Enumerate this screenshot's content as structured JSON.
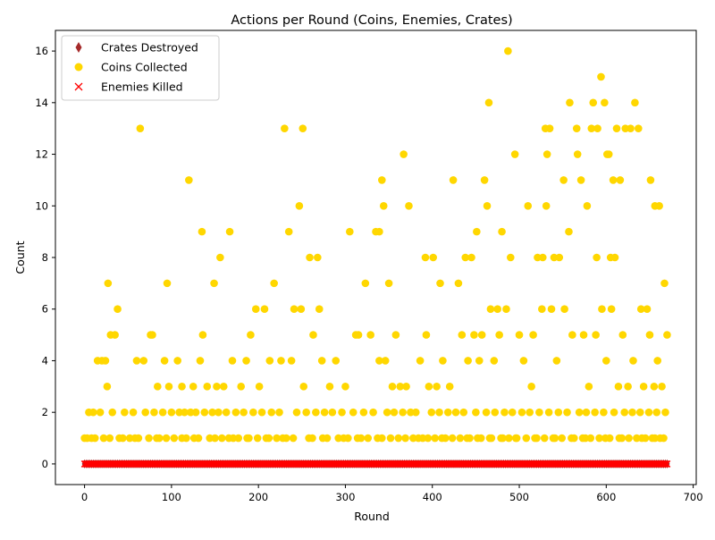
{
  "chart_data": {
    "type": "scatter",
    "title": "Actions per Round (Coins, Enemies, Crates)",
    "xlabel": "Round",
    "ylabel": "Count",
    "xlim": [
      -33.5,
      703.5
    ],
    "ylim": [
      -0.8,
      16.8
    ],
    "xticks": [
      0,
      100,
      200,
      300,
      400,
      500,
      600,
      700
    ],
    "yticks": [
      0,
      2,
      4,
      6,
      8,
      10,
      12,
      14,
      16
    ],
    "grid": false,
    "legend_position": "upper left",
    "series": [
      {
        "name": "Crates Destroyed",
        "marker": "thin-diamond",
        "color": "#a52a2a",
        "x_range": [
          0,
          670
        ],
        "values": "all 0"
      },
      {
        "name": "Coins Collected",
        "marker": "circle",
        "color": "#ffd700",
        "points": [
          [
            27,
            7
          ],
          [
            38,
            6
          ],
          [
            64,
            13
          ],
          [
            76,
            5
          ],
          [
            95,
            7
          ],
          [
            120,
            11
          ],
          [
            135,
            9
          ],
          [
            136,
            5
          ],
          [
            149,
            7
          ],
          [
            156,
            8
          ],
          [
            167,
            9
          ],
          [
            191,
            5
          ],
          [
            197,
            6
          ],
          [
            207,
            6
          ],
          [
            218,
            7
          ],
          [
            230,
            13
          ],
          [
            235,
            9
          ],
          [
            241,
            6
          ],
          [
            247,
            10
          ],
          [
            249,
            6
          ],
          [
            251,
            13
          ],
          [
            259,
            8
          ],
          [
            268,
            8
          ],
          [
            270,
            6
          ],
          [
            305,
            9
          ],
          [
            312,
            5
          ],
          [
            323,
            7
          ],
          [
            335,
            9
          ],
          [
            339,
            9
          ],
          [
            342,
            11
          ],
          [
            344,
            10
          ],
          [
            350,
            7
          ],
          [
            358,
            5
          ],
          [
            367,
            12
          ],
          [
            373,
            10
          ],
          [
            392,
            8
          ],
          [
            393,
            5
          ],
          [
            401,
            8
          ],
          [
            409,
            7
          ],
          [
            424,
            11
          ],
          [
            430,
            7
          ],
          [
            438,
            8
          ],
          [
            445,
            8
          ],
          [
            451,
            9
          ],
          [
            457,
            5
          ],
          [
            460,
            11
          ],
          [
            463,
            10
          ],
          [
            465,
            14
          ],
          [
            467,
            6
          ],
          [
            475,
            6
          ],
          [
            480,
            9
          ],
          [
            485,
            6
          ],
          [
            487,
            16
          ],
          [
            490,
            8
          ],
          [
            495,
            12
          ],
          [
            510,
            10
          ],
          [
            516,
            5
          ],
          [
            521,
            8
          ],
          [
            527,
            8
          ],
          [
            530,
            13
          ],
          [
            531,
            10
          ],
          [
            532,
            12
          ],
          [
            535,
            13
          ],
          [
            540,
            8
          ],
          [
            546,
            8
          ],
          [
            551,
            11
          ],
          [
            557,
            9
          ],
          [
            558,
            14
          ],
          [
            566,
            13
          ],
          [
            567,
            12
          ],
          [
            571,
            11
          ],
          [
            578,
            10
          ],
          [
            583,
            13
          ],
          [
            585,
            14
          ],
          [
            589,
            8
          ],
          [
            590,
            13
          ],
          [
            594,
            15
          ],
          [
            598,
            14
          ],
          [
            601,
            12
          ],
          [
            603,
            12
          ],
          [
            605,
            8
          ],
          [
            608,
            11
          ],
          [
            610,
            8
          ],
          [
            612,
            13
          ],
          [
            616,
            11
          ],
          [
            622,
            13
          ],
          [
            628,
            13
          ],
          [
            633,
            14
          ],
          [
            637,
            13
          ],
          [
            640,
            6
          ],
          [
            647,
            6
          ],
          [
            651,
            11
          ],
          [
            656,
            10
          ],
          [
            661,
            10
          ],
          [
            667,
            7
          ],
          [
            10,
            2
          ],
          [
            15,
            4
          ],
          [
            20,
            4
          ],
          [
            24,
            4
          ],
          [
            30,
            5
          ],
          [
            35,
            5
          ],
          [
            60,
            4
          ],
          [
            68,
            4
          ],
          [
            78,
            5
          ],
          [
            84,
            3
          ],
          [
            92,
            4
          ],
          [
            97,
            3
          ],
          [
            107,
            4
          ],
          [
            112,
            3
          ],
          [
            125,
            3
          ],
          [
            133,
            4
          ],
          [
            141,
            3
          ],
          [
            152,
            3
          ],
          [
            160,
            3
          ],
          [
            170,
            4
          ],
          [
            180,
            3
          ],
          [
            186,
            4
          ],
          [
            201,
            3
          ],
          [
            213,
            4
          ],
          [
            226,
            4
          ],
          [
            238,
            4
          ],
          [
            252,
            3
          ],
          [
            263,
            5
          ],
          [
            273,
            4
          ],
          [
            282,
            3
          ],
          [
            289,
            4
          ],
          [
            300,
            3
          ],
          [
            315,
            5
          ],
          [
            329,
            5
          ],
          [
            339,
            4
          ],
          [
            346,
            4
          ],
          [
            354,
            3
          ],
          [
            363,
            3
          ],
          [
            370,
            3
          ],
          [
            386,
            4
          ],
          [
            396,
            3
          ],
          [
            405,
            3
          ],
          [
            412,
            4
          ],
          [
            420,
            3
          ],
          [
            434,
            5
          ],
          [
            441,
            4
          ],
          [
            448,
            5
          ],
          [
            454,
            4
          ],
          [
            471,
            4
          ],
          [
            477,
            5
          ],
          [
            500,
            5
          ],
          [
            505,
            4
          ],
          [
            514,
            3
          ],
          [
            526,
            6
          ],
          [
            537,
            6
          ],
          [
            543,
            4
          ],
          [
            552,
            6
          ],
          [
            561,
            5
          ],
          [
            574,
            5
          ],
          [
            580,
            3
          ],
          [
            588,
            5
          ],
          [
            595,
            6
          ],
          [
            600,
            4
          ],
          [
            606,
            6
          ],
          [
            614,
            3
          ],
          [
            619,
            5
          ],
          [
            625,
            3
          ],
          [
            631,
            4
          ],
          [
            643,
            3
          ],
          [
            650,
            5
          ],
          [
            655,
            3
          ],
          [
            659,
            4
          ],
          [
            664,
            3
          ],
          [
            670,
            5
          ],
          [
            5,
            2
          ],
          [
            12,
            1
          ],
          [
            18,
            2
          ],
          [
            22,
            1
          ],
          [
            26,
            3
          ],
          [
            32,
            2
          ],
          [
            40,
            1
          ],
          [
            46,
            2
          ],
          [
            52,
            1
          ],
          [
            56,
            2
          ],
          [
            62,
            1
          ],
          [
            70,
            2
          ],
          [
            74,
            1
          ],
          [
            80,
            2
          ],
          [
            86,
            1
          ],
          [
            90,
            2
          ],
          [
            100,
            2
          ],
          [
            103,
            1
          ],
          [
            109,
            2
          ],
          [
            115,
            2
          ],
          [
            117,
            1
          ],
          [
            122,
            2
          ],
          [
            128,
            2
          ],
          [
            131,
            1
          ],
          [
            138,
            2
          ],
          [
            144,
            1
          ],
          [
            147,
            2
          ],
          [
            154,
            2
          ],
          [
            158,
            1
          ],
          [
            163,
            2
          ],
          [
            166,
            1
          ],
          [
            174,
            2
          ],
          [
            177,
            1
          ],
          [
            183,
            2
          ],
          [
            189,
            1
          ],
          [
            194,
            2
          ],
          [
            199,
            1
          ],
          [
            204,
            2
          ],
          [
            209,
            1
          ],
          [
            215,
            2
          ],
          [
            221,
            1
          ],
          [
            224,
            2
          ],
          [
            232,
            1
          ],
          [
            244,
            2
          ],
          [
            255,
            2
          ],
          [
            258,
            1
          ],
          [
            266,
            2
          ],
          [
            276,
            2
          ],
          [
            279,
            1
          ],
          [
            285,
            2
          ],
          [
            292,
            1
          ],
          [
            296,
            2
          ],
          [
            303,
            1
          ],
          [
            309,
            2
          ],
          [
            318,
            1
          ],
          [
            321,
            2
          ],
          [
            326,
            1
          ],
          [
            332,
            2
          ],
          [
            337,
            1
          ],
          [
            348,
            2
          ],
          [
            352,
            1
          ],
          [
            356,
            2
          ],
          [
            361,
            1
          ],
          [
            366,
            2
          ],
          [
            375,
            2
          ],
          [
            378,
            1
          ],
          [
            381,
            2
          ],
          [
            389,
            1
          ],
          [
            399,
            2
          ],
          [
            403,
            1
          ],
          [
            408,
            2
          ],
          [
            415,
            1
          ],
          [
            418,
            2
          ],
          [
            423,
            1
          ],
          [
            427,
            2
          ],
          [
            432,
            1
          ],
          [
            436,
            2
          ],
          [
            443,
            1
          ],
          [
            450,
            2
          ],
          [
            456,
            1
          ],
          [
            462,
            2
          ],
          [
            468,
            1
          ],
          [
            472,
            2
          ],
          [
            479,
            1
          ],
          [
            483,
            2
          ],
          [
            488,
            1
          ],
          [
            492,
            2
          ],
          [
            497,
            1
          ],
          [
            503,
            2
          ],
          [
            508,
            1
          ],
          [
            512,
            2
          ],
          [
            518,
            1
          ],
          [
            523,
            2
          ],
          [
            529,
            1
          ],
          [
            534,
            2
          ],
          [
            539,
            1
          ],
          [
            545,
            2
          ],
          [
            549,
            1
          ],
          [
            555,
            2
          ],
          [
            563,
            1
          ],
          [
            569,
            2
          ],
          [
            573,
            1
          ],
          [
            577,
            2
          ],
          [
            582,
            1
          ],
          [
            587,
            2
          ],
          [
            592,
            1
          ],
          [
            597,
            2
          ],
          [
            604,
            1
          ],
          [
            609,
            2
          ],
          [
            615,
            1
          ],
          [
            621,
            2
          ],
          [
            626,
            1
          ],
          [
            630,
            2
          ],
          [
            635,
            1
          ],
          [
            639,
            2
          ],
          [
            645,
            1
          ],
          [
            649,
            2
          ],
          [
            653,
            1
          ],
          [
            658,
            2
          ],
          [
            662,
            1
          ],
          [
            668,
            2
          ],
          [
            0,
            1
          ],
          [
            3,
            1
          ],
          [
            8,
            1
          ],
          [
            29,
            1
          ],
          [
            44,
            1
          ],
          [
            58,
            1
          ],
          [
            83,
            1
          ],
          [
            94,
            1
          ],
          [
            112,
            1
          ],
          [
            126,
            1
          ],
          [
            150,
            1
          ],
          [
            171,
            1
          ],
          [
            187,
            1
          ],
          [
            212,
            1
          ],
          [
            228,
            1
          ],
          [
            240,
            1
          ],
          [
            262,
            1
          ],
          [
            274,
            1
          ],
          [
            298,
            1
          ],
          [
            314,
            1
          ],
          [
            342,
            1
          ],
          [
            369,
            1
          ],
          [
            384,
            1
          ],
          [
            395,
            1
          ],
          [
            411,
            1
          ],
          [
            440,
            1
          ],
          [
            452,
            1
          ],
          [
            466,
            1
          ],
          [
            481,
            1
          ],
          [
            496,
            1
          ],
          [
            520,
            1
          ],
          [
            541,
            1
          ],
          [
            560,
            1
          ],
          [
            576,
            1
          ],
          [
            599,
            1
          ],
          [
            618,
            1
          ],
          [
            641,
            1
          ],
          [
            656,
            1
          ],
          [
            666,
            1
          ]
        ]
      },
      {
        "name": "Enemies Killed",
        "marker": "x",
        "color": "#ff0000",
        "x_range": [
          0,
          670
        ],
        "values": "all 0"
      }
    ]
  }
}
